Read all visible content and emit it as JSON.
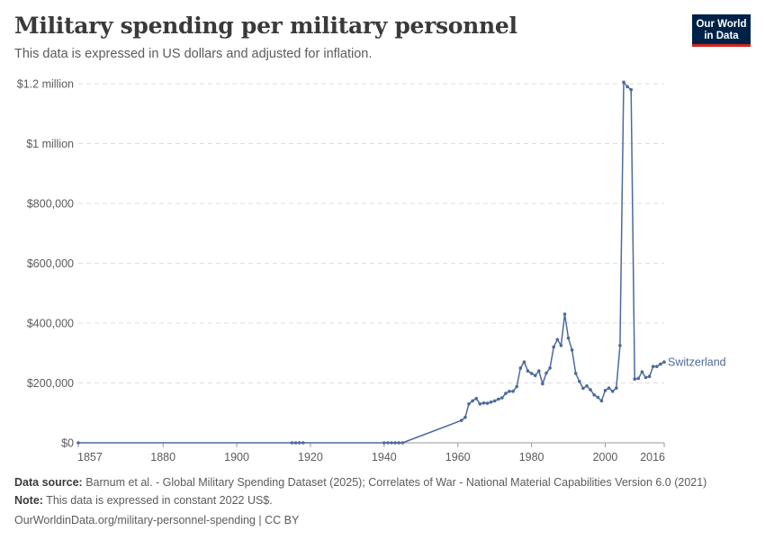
{
  "header": {
    "title": "Military spending per military personnel",
    "subtitle": "This data is expressed in US dollars and adjusted for inflation.",
    "logo_line1": "Our World",
    "logo_line2": "in Data"
  },
  "footer": {
    "source_label": "Data source:",
    "source_text": "Barnum et al. - Global Military Spending Dataset (2025); Correlates of War - National Material Capabilities Version 6.0 (2021)",
    "note_label": "Note:",
    "note_text": "This data is expressed in constant 2022 US$.",
    "url_text": "OurWorldinData.org/military-personnel-spending | CC BY"
  },
  "colors": {
    "series": "#4c6a9c",
    "grid": "#dddddd",
    "axis": "#999999",
    "text": "#5b5b5b"
  },
  "chart_data": {
    "type": "line",
    "title": "Military spending per military personnel",
    "xlabel": "",
    "ylabel": "",
    "xlim": [
      1857,
      2016
    ],
    "ylim": [
      0,
      1200000
    ],
    "x_ticks": [
      1857,
      1880,
      1900,
      1920,
      1940,
      1960,
      1980,
      2000,
      2016
    ],
    "x_tick_labels": [
      "1857",
      "1880",
      "1900",
      "1920",
      "1940",
      "1960",
      "1980",
      "2000",
      "2016"
    ],
    "y_ticks": [
      0,
      200000,
      400000,
      600000,
      800000,
      1000000,
      1200000
    ],
    "y_tick_labels": [
      "$0",
      "$200,000",
      "$400,000",
      "$600,000",
      "$800,000",
      "$1 million",
      "$1.2 million"
    ],
    "grid": "horizontal dashed",
    "legend": "end-of-line label",
    "series": [
      {
        "name": "Switzerland",
        "x": [
          1857,
          1915,
          1916,
          1917,
          1918,
          1940,
          1941,
          1942,
          1943,
          1944,
          1945,
          1961,
          1962,
          1963,
          1964,
          1965,
          1966,
          1967,
          1968,
          1969,
          1970,
          1971,
          1972,
          1973,
          1974,
          1975,
          1976,
          1977,
          1978,
          1979,
          1980,
          1981,
          1982,
          1983,
          1984,
          1985,
          1986,
          1987,
          1988,
          1989,
          1990,
          1991,
          1992,
          1993,
          1994,
          1995,
          1996,
          1997,
          1998,
          1999,
          2000,
          2001,
          2002,
          2003,
          2004,
          2005,
          2006,
          2007,
          2008,
          2009,
          2010,
          2011,
          2012,
          2013,
          2014,
          2015,
          2016
        ],
        "y": [
          0,
          0,
          0,
          0,
          0,
          0,
          0,
          0,
          0,
          0,
          0,
          75000,
          85000,
          130000,
          140000,
          148000,
          130000,
          133000,
          132000,
          136000,
          140000,
          146000,
          150000,
          165000,
          172000,
          172000,
          188000,
          250000,
          270000,
          240000,
          232000,
          225000,
          240000,
          197000,
          233000,
          250000,
          320000,
          345000,
          325000,
          430000,
          350000,
          310000,
          232000,
          205000,
          182000,
          190000,
          177000,
          160000,
          152000,
          140000,
          175000,
          183000,
          172000,
          183000,
          325000,
          1205000,
          1190000,
          1180000,
          213000,
          215000,
          237000,
          218000,
          222000,
          255000,
          255000,
          263000,
          270000
        ]
      }
    ]
  }
}
